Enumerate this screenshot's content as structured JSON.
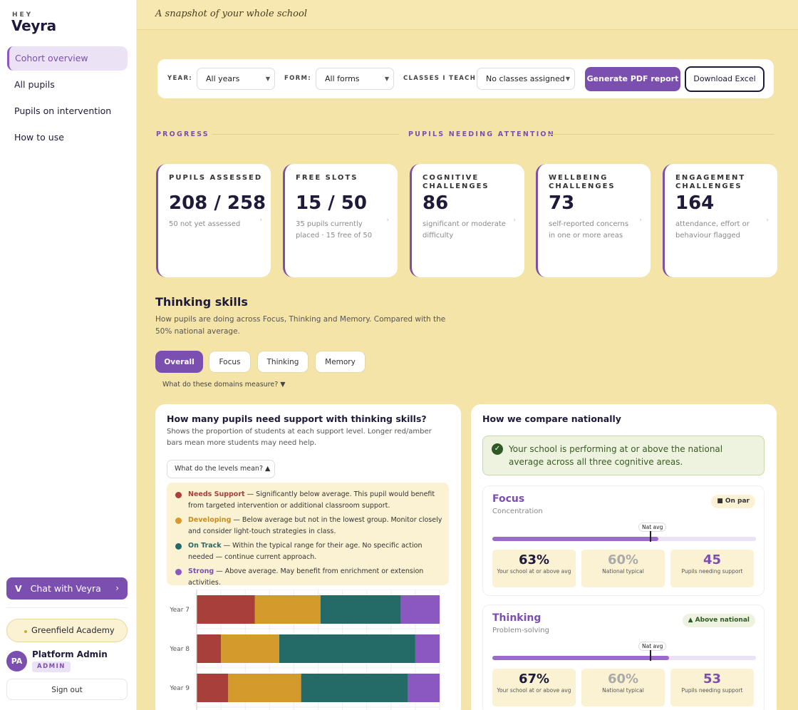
{
  "brand": {
    "hey": "HEY",
    "name": "Veyra"
  },
  "topbar": {
    "tagline": "A snapshot of your whole school"
  },
  "nav": {
    "items": [
      {
        "label": "Cohort overview",
        "active": true
      },
      {
        "label": "All pupils",
        "active": false
      },
      {
        "label": "Pupils on intervention",
        "active": false
      },
      {
        "label": "How to use",
        "active": false
      }
    ]
  },
  "chat": {
    "label": "Chat with Veyra",
    "icon": "V",
    "arrow": "›"
  },
  "school": {
    "name": "Greenfield Academy"
  },
  "user": {
    "initials": "PA",
    "name": "Platform Admin",
    "role": "ADMIN",
    "signout": "Sign out"
  },
  "filters": {
    "year_label": "YEAR:",
    "year_value": "All years",
    "form_label": "FORM:",
    "form_value": "All forms",
    "classes_label": "CLASSES I TEACH:",
    "classes_value": "No classes assigned",
    "pdf_button": "Generate PDF report",
    "excel_button": "Download Excel"
  },
  "sections": {
    "progress": "PROGRESS",
    "attention": "PUPILS NEEDING ATTENTION"
  },
  "cards": [
    {
      "title": "PUPILS ASSESSED",
      "value": "208 / 258",
      "sub": "50 not yet assessed"
    },
    {
      "title": "FREE SLOTS",
      "value": "15 / 50",
      "sub": "35 pupils currently placed · 15 free of 50"
    },
    {
      "title": "COGNITIVE CHALLENGES",
      "value": "86",
      "sub": "significant or moderate difficulty"
    },
    {
      "title": "WELLBEING CHALLENGES",
      "value": "73",
      "sub": "self-reported concerns in one or more areas"
    },
    {
      "title": "ENGAGEMENT CHALLENGES",
      "value": "164",
      "sub": "attendance, effort or behaviour flagged"
    }
  ],
  "thinking": {
    "title": "Thinking skills",
    "description": "How pupils are doing across Focus, Thinking and Memory. Compared with the 50% national average.",
    "tabs": [
      "Overall",
      "Focus",
      "Thinking",
      "Memory"
    ],
    "domains_link": "What do these domains measure? ▼"
  },
  "support_panel": {
    "title": "How many pupils need support with thinking skills?",
    "description": "Shows the proportion of students at each support level. Longer red/amber bars mean more students may need help.",
    "levels_button": "What do the levels mean? ▲",
    "levels": [
      {
        "name": "Needs Support",
        "text": " — Significantly below average. This pupil would benefit from targeted intervention or additional classroom support.",
        "color": "#a93f3a"
      },
      {
        "name": "Developing",
        "text": " — Below average but not in the lowest group. Monitor closely and consider light-touch strategies in class.",
        "color": "#d49a2c"
      },
      {
        "name": "On Track",
        "text": " — Within the typical range for their age. No specific action needed — continue current approach.",
        "color": "#246a66"
      },
      {
        "name": "Strong",
        "text": " — Above average. May benefit from enrichment or extension activities.",
        "color": "#8a58c0"
      }
    ]
  },
  "chart_data": {
    "type": "bar",
    "stacked": true,
    "orientation": "horizontal",
    "categories": [
      "Year 7",
      "Year 8",
      "Year 9"
    ],
    "series": [
      {
        "name": "Needs Support",
        "color": "#a93f3a",
        "values": [
          24,
          10,
          13
        ]
      },
      {
        "name": "Developing",
        "color": "#d49a2c",
        "values": [
          27,
          24,
          30
        ]
      },
      {
        "name": "On Track",
        "color": "#246a66",
        "values": [
          33,
          56,
          44
        ]
      },
      {
        "name": "Strong",
        "color": "#8a58c0",
        "values": [
          16,
          10,
          13
        ]
      }
    ],
    "xlim": [
      0,
      100
    ],
    "grid": true
  },
  "compare_panel": {
    "title": "How we compare nationally",
    "ok_icon": "✓",
    "ok_text": "Your school is performing at or above the national average across all three cognitive areas.",
    "domains": [
      {
        "name": "Focus",
        "sub": "Concentration",
        "badge": "■ On par",
        "school_pct": 63,
        "national_pct": 60,
        "school_value": "63%",
        "school_label": "Your school at or above avg",
        "national_value": "60%",
        "national_label": "National typical",
        "needing_value": "45",
        "needing_label": "Pupils needing support",
        "nat_avg_label": "Nat avg"
      },
      {
        "name": "Thinking",
        "sub": "Problem-solving",
        "badge": "▲ Above national",
        "school_pct": 67,
        "national_pct": 60,
        "school_value": "67%",
        "school_label": "Your school at or above avg",
        "national_value": "60%",
        "national_label": "National typical",
        "needing_value": "53",
        "needing_label": "Pupils needing support",
        "nat_avg_label": "Nat avg"
      }
    ]
  }
}
